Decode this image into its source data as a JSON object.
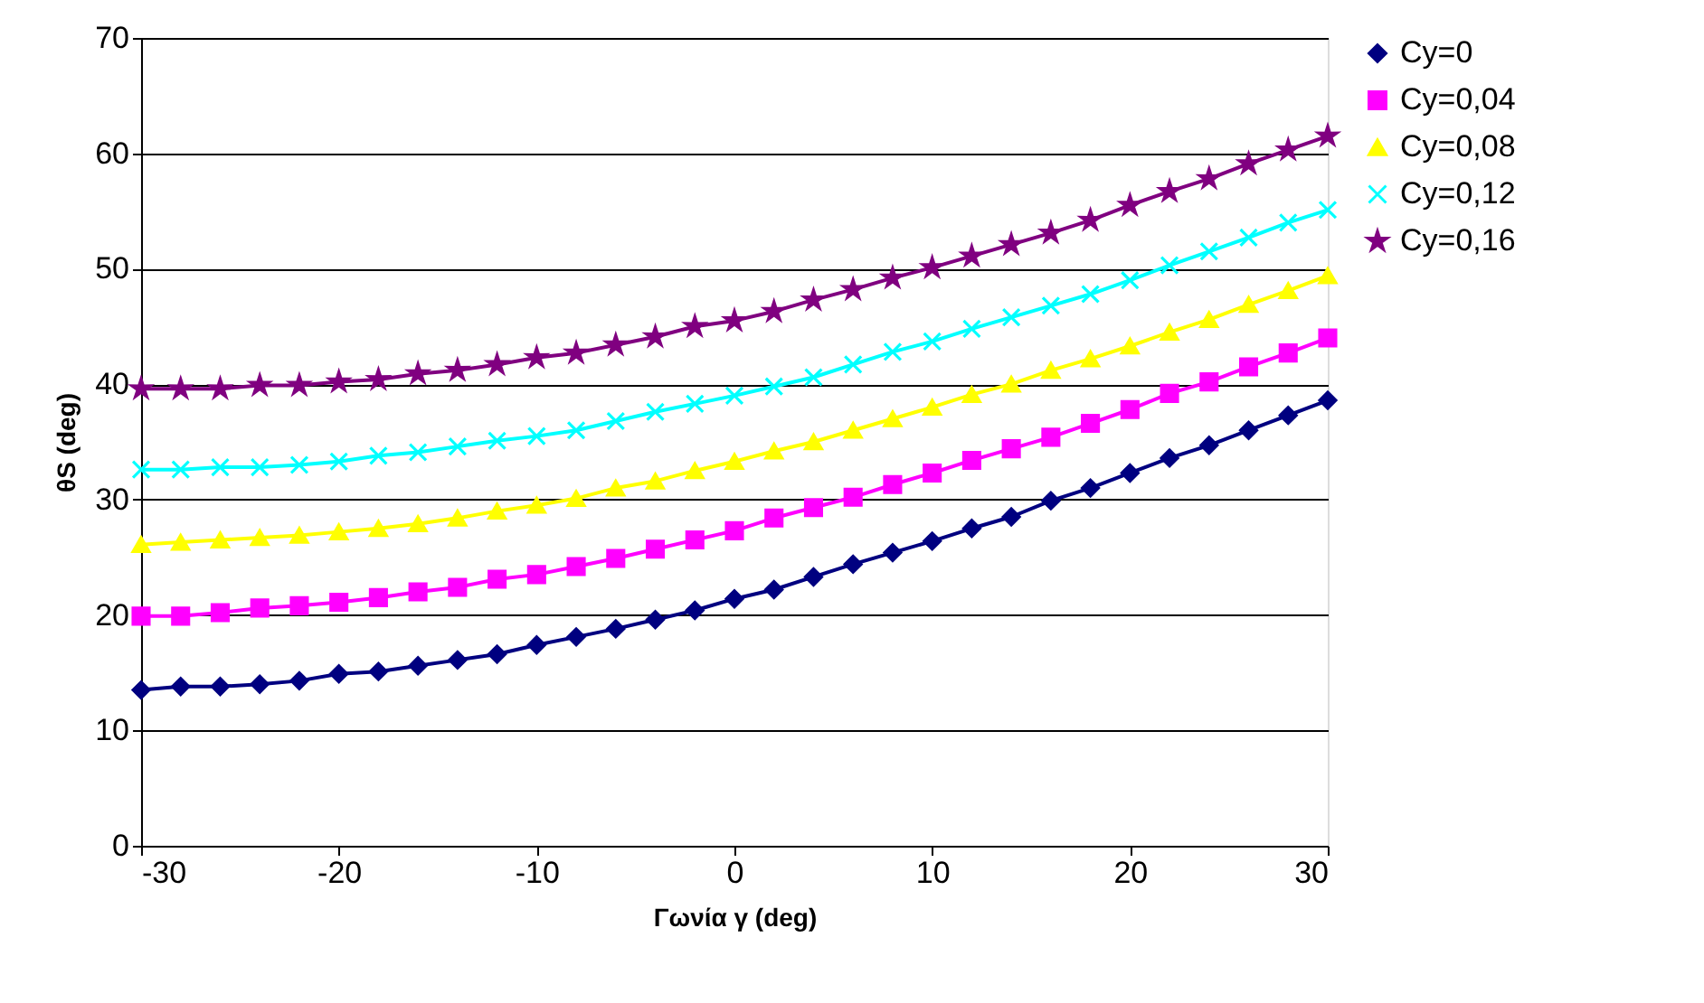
{
  "chart_data": {
    "type": "line",
    "xlabel": "Γωνία γ (deg)",
    "ylabel": "θS (deg)",
    "x": [
      -30,
      -28,
      -26,
      -24,
      -22,
      -20,
      -18,
      -16,
      -14,
      -12,
      -10,
      -8,
      -6,
      -4,
      -2,
      0,
      2,
      4,
      6,
      8,
      10,
      12,
      14,
      16,
      18,
      20,
      22,
      24,
      26,
      28,
      30
    ],
    "xlim": [
      -30,
      30
    ],
    "xticks": [
      -30,
      -20,
      -10,
      0,
      10,
      20,
      30
    ],
    "ylim": [
      0,
      70
    ],
    "yticks": [
      0,
      10,
      20,
      30,
      40,
      50,
      60,
      70
    ],
    "grid": "y",
    "legend": "right",
    "line_style": "solid",
    "series": [
      {
        "name": "Cy=0",
        "color": "#000080",
        "marker": "diamond",
        "values": [
          13.5,
          13.8,
          13.8,
          14.0,
          14.3,
          14.9,
          15.1,
          15.6,
          16.1,
          16.6,
          17.4,
          18.1,
          18.8,
          19.6,
          20.4,
          21.4,
          22.2,
          23.3,
          24.4,
          25.4,
          26.4,
          27.5,
          28.5,
          29.9,
          31.0,
          32.3,
          33.6,
          34.7,
          36.0,
          37.3,
          38.6
        ]
      },
      {
        "name": "Cy=0,04",
        "color": "#ff00ff",
        "marker": "square",
        "values": [
          19.9,
          19.9,
          20.2,
          20.6,
          20.8,
          21.1,
          21.5,
          22.0,
          22.4,
          23.1,
          23.5,
          24.2,
          24.9,
          25.7,
          26.5,
          27.3,
          28.4,
          29.3,
          30.2,
          31.3,
          32.3,
          33.4,
          34.4,
          35.4,
          36.6,
          37.8,
          39.2,
          40.2,
          41.5,
          42.7,
          44.0
        ]
      },
      {
        "name": "Cy=0,08",
        "color": "#ffff00",
        "marker": "triangle",
        "values": [
          26.1,
          26.3,
          26.5,
          26.7,
          26.9,
          27.2,
          27.5,
          27.9,
          28.4,
          29.0,
          29.5,
          30.1,
          31.0,
          31.6,
          32.5,
          33.3,
          34.2,
          35.0,
          36.0,
          37.0,
          38.0,
          39.1,
          40.0,
          41.2,
          42.2,
          43.3,
          44.5,
          45.6,
          46.9,
          48.1,
          49.4
        ]
      },
      {
        "name": "Cy=0,12",
        "color": "#00ffff",
        "marker": "cross",
        "values": [
          32.6,
          32.6,
          32.8,
          32.8,
          33.0,
          33.3,
          33.8,
          34.1,
          34.6,
          35.1,
          35.5,
          36.0,
          36.8,
          37.6,
          38.3,
          39.0,
          39.8,
          40.6,
          41.7,
          42.8,
          43.7,
          44.8,
          45.8,
          46.8,
          47.8,
          49.0,
          50.3,
          51.5,
          52.7,
          54.0,
          55.1
        ]
      },
      {
        "name": "Cy=0,16",
        "color": "#800080",
        "marker": "star",
        "values": [
          39.6,
          39.6,
          39.6,
          39.9,
          39.9,
          40.2,
          40.4,
          40.9,
          41.2,
          41.7,
          42.3,
          42.7,
          43.4,
          44.1,
          45.0,
          45.5,
          46.3,
          47.3,
          48.2,
          49.2,
          50.1,
          51.1,
          52.1,
          53.1,
          54.2,
          55.5,
          56.7,
          57.8,
          59.1,
          60.3,
          61.5
        ]
      }
    ]
  }
}
